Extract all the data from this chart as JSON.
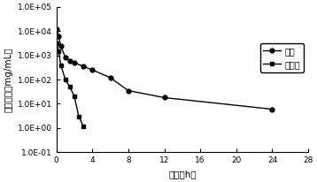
{
  "title": "",
  "xlabel": "时间（h）",
  "ylabel": "血药浓度（mg/mL）",
  "xlim": [
    0,
    28
  ],
  "ylim_log": [
    0.1,
    100000
  ],
  "xticks": [
    0,
    4,
    8,
    12,
    16,
    20,
    24,
    28
  ],
  "yticks": [
    0.1,
    1.0,
    10.0,
    100.0,
    1000.0,
    10000.0,
    100000.0
  ],
  "ytick_labels": [
    "1.0E-01",
    "1.0E+00",
    "1.0E+01",
    "1.0E+02",
    "1.0E+03",
    "1.0E+04",
    "1.0E+05"
  ],
  "legend_labels": [
    "胶束",
    "注射液"
  ],
  "micelle_x": [
    0.05,
    0.25,
    0.5,
    1.0,
    1.5,
    2.0,
    3.0,
    4.0,
    6.0,
    8.0,
    12.0,
    24.0
  ],
  "micelle_y": [
    12000,
    6000,
    2500,
    800,
    600,
    500,
    350,
    250,
    120,
    35,
    18,
    6
  ],
  "injection_x": [
    0.05,
    0.25,
    0.5,
    1.0,
    1.5,
    2.0,
    2.5,
    3.0
  ],
  "injection_y": [
    3000,
    1500,
    400,
    100,
    50,
    20,
    3,
    1.2
  ],
  "line_color": "#000000",
  "bg_color": "#ffffff",
  "marker_size": 3.5,
  "line_width": 1.0,
  "tick_fontsize": 6.5,
  "label_fontsize": 7.5,
  "legend_fontsize": 7
}
